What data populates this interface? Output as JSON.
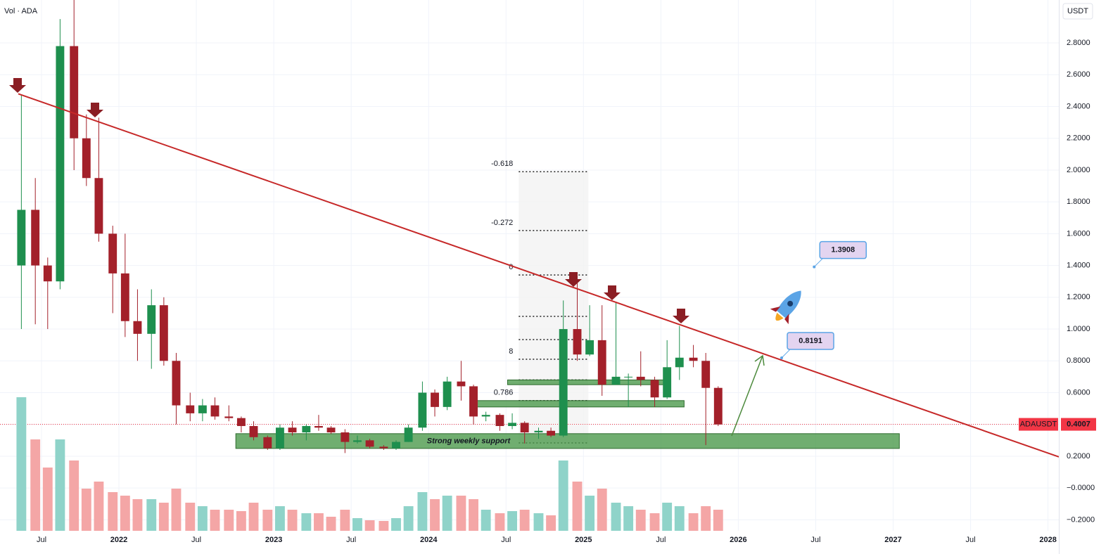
{
  "chart_data": {
    "type": "candlestick",
    "title": "Vol · ADA",
    "currency": "USDT",
    "xlim": [
      2021.232,
      2028.07
    ],
    "xticks": [
      {
        "value": 2021.5,
        "label": "Jul"
      },
      {
        "value": 2022,
        "label": "2022"
      },
      {
        "value": 2022.5,
        "label": "Jul"
      },
      {
        "value": 2023,
        "label": "2023"
      },
      {
        "value": 2023.5,
        "label": "Jul"
      },
      {
        "value": 2024,
        "label": "2024"
      },
      {
        "value": 2024.5,
        "label": "Jul"
      },
      {
        "value": 2025,
        "label": "2025"
      },
      {
        "value": 2025.5,
        "label": "Jul"
      },
      {
        "value": 2026,
        "label": "2026"
      },
      {
        "value": 2026.5,
        "label": "Jul"
      },
      {
        "value": 2027,
        "label": "2027"
      },
      {
        "value": 2027.5,
        "label": "Jul"
      },
      {
        "value": 2028,
        "label": "2028"
      }
    ],
    "ylim": [
      -0.415,
      3.07
    ],
    "yticks": [
      {
        "value": 2.8,
        "label": "2.8000"
      },
      {
        "value": 2.6,
        "label": "2.6000"
      },
      {
        "value": 2.4,
        "label": "2.4000"
      },
      {
        "value": 2.2,
        "label": "2.2000"
      },
      {
        "value": 2.0,
        "label": "2.0000"
      },
      {
        "value": 1.8,
        "label": "1.8000"
      },
      {
        "value": 1.6,
        "label": "1.6000"
      },
      {
        "value": 1.4,
        "label": "1.4000"
      },
      {
        "value": 1.2,
        "label": "1.2000"
      },
      {
        "value": 1.0,
        "label": "1.0000"
      },
      {
        "value": 0.8,
        "label": "0.8000"
      },
      {
        "value": 0.6,
        "label": "0.6000"
      },
      {
        "value": 0.4,
        "label": "0.4000"
      },
      {
        "value": 0.2,
        "label": "0.2000"
      },
      {
        "value": 0,
        "label": "−0.0000"
      },
      {
        "value": -0.2,
        "label": "−0.2000"
      }
    ],
    "up_color": "#1e8f4e",
    "down_color": "#a3202a",
    "volume_up_color": "#8fd3c9",
    "volume_down_color": "#f4a6a6",
    "x": [
      2021.37,
      2021.46,
      2021.54,
      2021.62,
      2021.71,
      2021.79,
      2021.87,
      2021.96,
      2022.04,
      2022.12,
      2022.21,
      2022.29,
      2022.37,
      2022.46,
      2022.54,
      2022.62,
      2022.71,
      2022.79,
      2022.87,
      2022.96,
      2023.04,
      2023.12,
      2023.21,
      2023.29,
      2023.37,
      2023.46,
      2023.54,
      2023.62,
      2023.71,
      2023.79,
      2023.87,
      2023.96,
      2024.04,
      2024.12,
      2024.21,
      2024.29,
      2024.37,
      2024.46,
      2024.54,
      2024.62,
      2024.71,
      2024.79,
      2024.87,
      2024.96,
      2025.04,
      2025.12,
      2025.21,
      2025.29,
      2025.37,
      2025.46,
      2025.54,
      2025.62,
      2025.71,
      2025.79,
      2025.87
    ],
    "open": [
      1.4,
      1.75,
      1.4,
      1.3,
      2.78,
      2.2,
      1.95,
      1.6,
      1.35,
      1.05,
      0.97,
      1.15,
      0.8,
      0.52,
      0.47,
      0.52,
      0.45,
      0.44,
      0.39,
      0.32,
      0.25,
      0.38,
      0.35,
      0.39,
      0.38,
      0.35,
      0.29,
      0.3,
      0.26,
      0.25,
      0.29,
      0.38,
      0.6,
      0.51,
      0.67,
      0.64,
      0.45,
      0.46,
      0.39,
      0.41,
      0.35,
      0.36,
      0.33,
      1.0,
      0.84,
      0.93,
      0.65,
      0.7,
      0.7,
      0.68,
      0.57,
      0.76,
      0.82,
      0.8,
      0.63
    ],
    "high": [
      2.47,
      1.95,
      1.45,
      2.95,
      3.1,
      2.35,
      2.33,
      1.65,
      1.6,
      1.25,
      1.25,
      1.2,
      0.85,
      0.6,
      0.56,
      0.57,
      0.52,
      0.45,
      0.42,
      0.33,
      0.4,
      0.42,
      0.4,
      0.46,
      0.39,
      0.37,
      0.33,
      0.31,
      0.27,
      0.3,
      0.4,
      0.67,
      0.62,
      0.7,
      0.8,
      0.65,
      0.48,
      0.47,
      0.47,
      0.42,
      0.38,
      0.38,
      1.18,
      1.32,
      1.15,
      1.15,
      1.17,
      0.72,
      0.86,
      0.7,
      0.93,
      1.02,
      0.9,
      0.85,
      0.64
    ],
    "low": [
      1.0,
      1.03,
      1.0,
      1.25,
      2.0,
      1.9,
      1.55,
      1.1,
      0.95,
      0.8,
      0.75,
      0.77,
      0.4,
      0.42,
      0.42,
      0.43,
      0.42,
      0.35,
      0.3,
      0.24,
      0.24,
      0.33,
      0.3,
      0.36,
      0.34,
      0.22,
      0.28,
      0.25,
      0.24,
      0.24,
      0.29,
      0.36,
      0.45,
      0.49,
      0.55,
      0.4,
      0.42,
      0.36,
      0.37,
      0.28,
      0.31,
      0.32,
      0.32,
      0.8,
      0.83,
      0.58,
      0.65,
      0.51,
      0.64,
      0.51,
      0.56,
      0.68,
      0.76,
      0.27,
      0.39
    ],
    "close": [
      1.75,
      1.4,
      1.3,
      2.78,
      2.2,
      1.95,
      1.6,
      1.35,
      1.05,
      0.97,
      1.15,
      0.8,
      0.52,
      0.47,
      0.52,
      0.45,
      0.44,
      0.39,
      0.32,
      0.25,
      0.38,
      0.35,
      0.39,
      0.38,
      0.35,
      0.29,
      0.3,
      0.26,
      0.25,
      0.29,
      0.38,
      0.6,
      0.51,
      0.67,
      0.64,
      0.45,
      0.46,
      0.39,
      0.41,
      0.35,
      0.36,
      0.33,
      1.0,
      0.84,
      0.93,
      0.65,
      0.7,
      0.7,
      0.68,
      0.57,
      0.76,
      0.82,
      0.8,
      0.63,
      0.4
    ],
    "volume": [
      190,
      130,
      90,
      130,
      100,
      60,
      70,
      55,
      50,
      45,
      45,
      40,
      60,
      40,
      35,
      30,
      30,
      28,
      40,
      30,
      35,
      30,
      25,
      25,
      20,
      30,
      18,
      15,
      14,
      18,
      35,
      55,
      45,
      50,
      50,
      45,
      30,
      25,
      28,
      30,
      25,
      22,
      100,
      70,
      50,
      60,
      40,
      35,
      30,
      25,
      40,
      35,
      25,
      35,
      30
    ],
    "last_price": {
      "symbol": "ADAUSDT",
      "value": 0.4007,
      "label": "0.4007",
      "color": "#f23645"
    },
    "trendline": {
      "x": [
        2021.35,
        2028.07
      ],
      "y": [
        2.48,
        0.196
      ],
      "color": "#c62828"
    },
    "support_zone": {
      "label": "Strong weekly support",
      "x": [
        2022.755,
        2027.04
      ],
      "y": [
        0.249,
        0.342
      ],
      "color": "#4c9a4c"
    },
    "zones": [
      {
        "x": [
          2024.31,
          2025.65
        ],
        "y": [
          0.51,
          0.55
        ]
      },
      {
        "x": [
          2024.51,
          2025.53
        ],
        "y": [
          0.65,
          0.68
        ]
      }
    ],
    "fib_levels": [
      {
        "label": "-0.618",
        "value": 1.99
      },
      {
        "label": "-0.272",
        "value": 1.62
      },
      {
        "label": "0",
        "value": 1.34
      },
      {
        "value": 1.08
      },
      {
        "value": 0.934
      },
      {
        "label": "8",
        "value": 0.81
      },
      {
        "value": 0.68
      },
      {
        "label": "0.786",
        "value": 0.55
      },
      {
        "value": 0.284
      }
    ],
    "fib_x": [
      2024.582,
      2025.032
    ],
    "targets": [
      {
        "label": "1.3908",
        "value": 1.3908,
        "x": 2026.49
      },
      {
        "label": "0.8191",
        "value": 0.8191,
        "x": 2026.28
      }
    ]
  }
}
